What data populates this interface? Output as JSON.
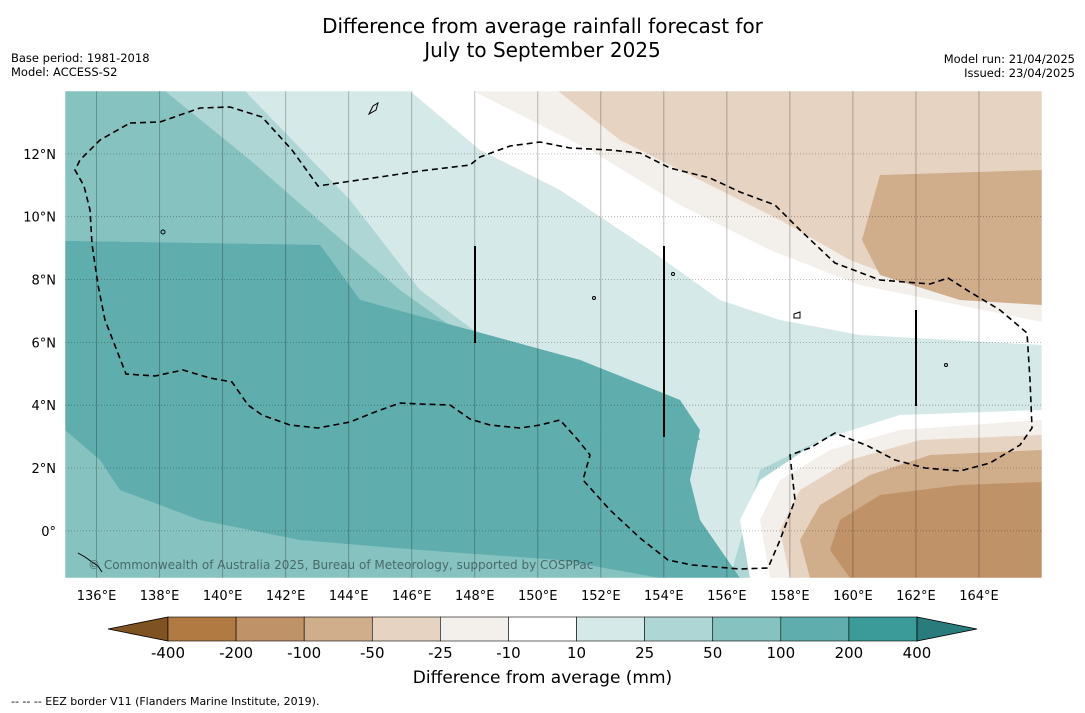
{
  "title_line1": "Difference from average rainfall forecast for",
  "title_line2": "July to September 2025",
  "base_period": "Base period: 1981-2018",
  "model": "Model: ACCESS-S2",
  "model_run": "Model run: 21/04/2025",
  "issued": "Issued: 23/04/2025",
  "copyright": "© Commonwealth of Australia 2025, Bureau of Meteorology, supported by COSPPac",
  "map": {
    "lon_range": [
      135,
      166
    ],
    "lat_range": [
      -1.5,
      14
    ],
    "lon_ticks": [
      "136°E",
      "138°E",
      "140°E",
      "142°E",
      "144°E",
      "146°E",
      "148°E",
      "150°E",
      "152°E",
      "154°E",
      "156°E",
      "158°E",
      "160°E",
      "162°E",
      "164°E"
    ],
    "lat_ticks": [
      "0°",
      "2°N",
      "4°N",
      "6°N",
      "8°N",
      "10°N",
      "12°N"
    ],
    "border_label": "EEZ border V11 (Flanders Marine Institute, 2019)."
  },
  "colorbar": {
    "label": "Difference from average (mm)",
    "ticks": [
      "-400",
      "-200",
      "-100",
      "-50",
      "-25",
      "-10",
      "10",
      "25",
      "50",
      "100",
      "200",
      "400"
    ],
    "colors": [
      "#7f5222",
      "#b17a42",
      "#c09268",
      "#d0ad8b",
      "#e6d3c1",
      "#f3efea",
      "#ffffff",
      "#d5e9e8",
      "#aed6d5",
      "#86c2c0",
      "#5fadad",
      "#3a9b98",
      "#2a7c7c"
    ]
  },
  "footer": "--  --  -- EEZ border V11 (Flanders Marine Institute, 2019)."
}
